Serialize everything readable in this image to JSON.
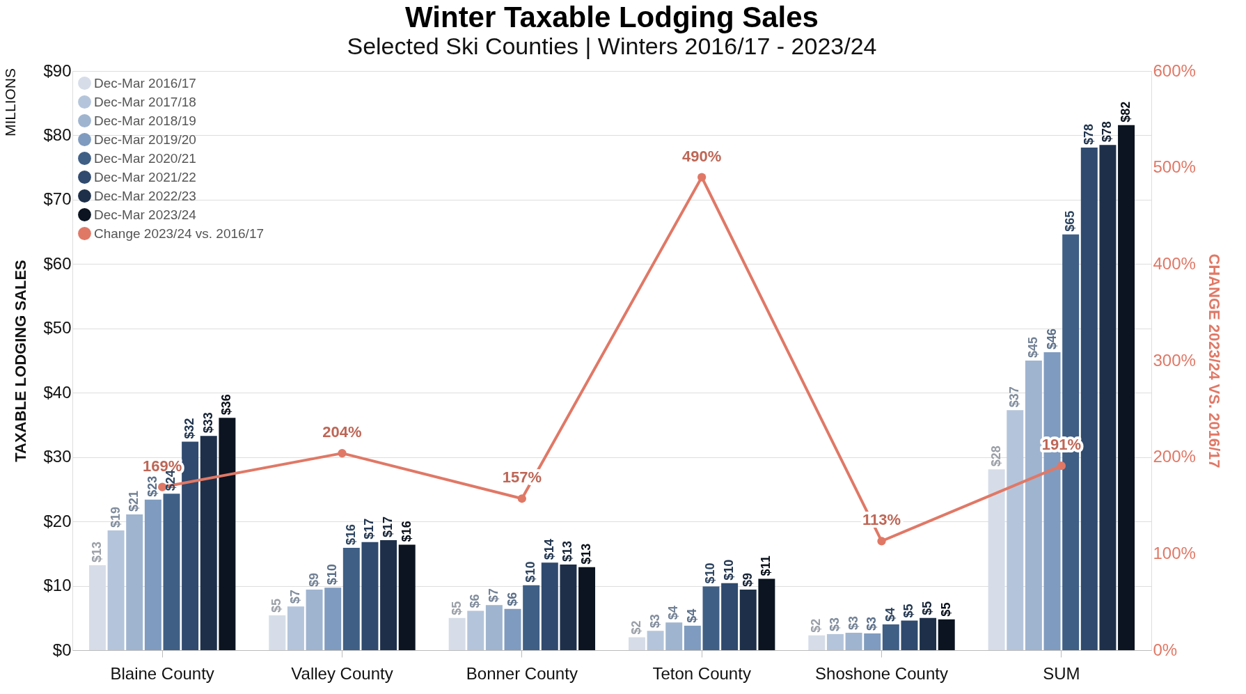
{
  "chart_data": {
    "type": "bar",
    "title": "Winter Taxable Lodging Sales",
    "subtitle": "Selected Ski Counties | Winters 2016/17 - 2023/24",
    "ylabel": "TAXABLE LODGING SALES",
    "y2label": "CHANGE 2023/24 VS. 2016/17",
    "annotations": [
      "MILLIONS"
    ],
    "categories": [
      "Blaine County",
      "Valley County",
      "Bonner County",
      "Teton County",
      "Shoshone County",
      "SUM"
    ],
    "series": [
      {
        "name": "Dec-Mar 2016/17",
        "color": "#d6dde8",
        "values": [
          13.2,
          5.4,
          5.0,
          2.0,
          2.3,
          28.1
        ],
        "value_labels": [
          "$13",
          "$5",
          "$5",
          "$2",
          "$2",
          "$28"
        ]
      },
      {
        "name": "Dec-Mar 2017/18",
        "color": "#b4c5db",
        "values": [
          18.6,
          6.8,
          6.1,
          3.0,
          2.5,
          37.3
        ],
        "value_labels": [
          "$19",
          "$7",
          "$6",
          "$3",
          "$3",
          "$37"
        ]
      },
      {
        "name": "Dec-Mar 2018/19",
        "color": "#9fb4cf",
        "values": [
          21.1,
          9.4,
          7.0,
          4.3,
          2.7,
          45.0
        ],
        "value_labels": [
          "$21",
          "$9",
          "$7",
          "$4",
          "$3",
          "$45"
        ]
      },
      {
        "name": "Dec-Mar 2019/20",
        "color": "#7f9bbf",
        "values": [
          23.4,
          9.7,
          6.4,
          3.8,
          2.6,
          46.3
        ],
        "value_labels": [
          "$23",
          "$10",
          "$6",
          "$4",
          "$3",
          "$46"
        ]
      },
      {
        "name": "Dec-Mar 2020/21",
        "color": "#3f5f85",
        "values": [
          24.3,
          15.9,
          10.1,
          9.9,
          4.0,
          64.6
        ],
        "value_labels": [
          "$24",
          "$16",
          "$10",
          "$10",
          "$4",
          "$65"
        ]
      },
      {
        "name": "Dec-Mar 2021/22",
        "color": "#2f4a6e",
        "values": [
          32.4,
          16.8,
          13.6,
          10.4,
          4.6,
          78.1
        ],
        "value_labels": [
          "$32",
          "$17",
          "$14",
          "$10",
          "$5",
          "$78"
        ]
      },
      {
        "name": "Dec-Mar 2022/23",
        "color": "#1e3049",
        "values": [
          33.3,
          17.1,
          13.3,
          9.4,
          5.0,
          78.5
        ],
        "value_labels": [
          "$33",
          "$17",
          "$13",
          "$9",
          "$5",
          "$78"
        ]
      },
      {
        "name": "Dec-Mar 2023/24",
        "color": "#0b1420",
        "values": [
          36.1,
          16.4,
          12.9,
          11.1,
          4.8,
          81.6
        ],
        "value_labels": [
          "$36",
          "$16",
          "$13",
          "$11",
          "$5",
          "$82"
        ]
      },
      {
        "name": "Change 2023/24 vs. 2016/17",
        "type": "line",
        "axis": "y2",
        "color": "#e07866",
        "marker": "circle",
        "values": [
          169,
          204,
          157,
          490,
          113,
          191
        ],
        "value_labels": [
          "169%",
          "204%",
          "157%",
          "490%",
          "113%",
          "191%"
        ]
      }
    ],
    "ylim": [
      0,
      90
    ],
    "yticks": [
      {
        "value": 0,
        "label": "$0"
      },
      {
        "value": 10,
        "label": "$10"
      },
      {
        "value": 20,
        "label": "$20"
      },
      {
        "value": 30,
        "label": "$30"
      },
      {
        "value": 40,
        "label": "$40"
      },
      {
        "value": 50,
        "label": "$50"
      },
      {
        "value": 60,
        "label": "$60"
      },
      {
        "value": 70,
        "label": "$70"
      },
      {
        "value": 80,
        "label": "$80"
      },
      {
        "value": 90,
        "label": "$90"
      }
    ],
    "y2lim": [
      0,
      600
    ],
    "y2ticks": [
      {
        "value": 0,
        "label": "0%"
      },
      {
        "value": 100,
        "label": "100%"
      },
      {
        "value": 200,
        "label": "200%"
      },
      {
        "value": 300,
        "label": "300%"
      },
      {
        "value": 400,
        "label": "400%"
      },
      {
        "value": 500,
        "label": "500%"
      },
      {
        "value": 600,
        "label": "600%"
      }
    ],
    "grid": "y",
    "legend": "top left"
  }
}
